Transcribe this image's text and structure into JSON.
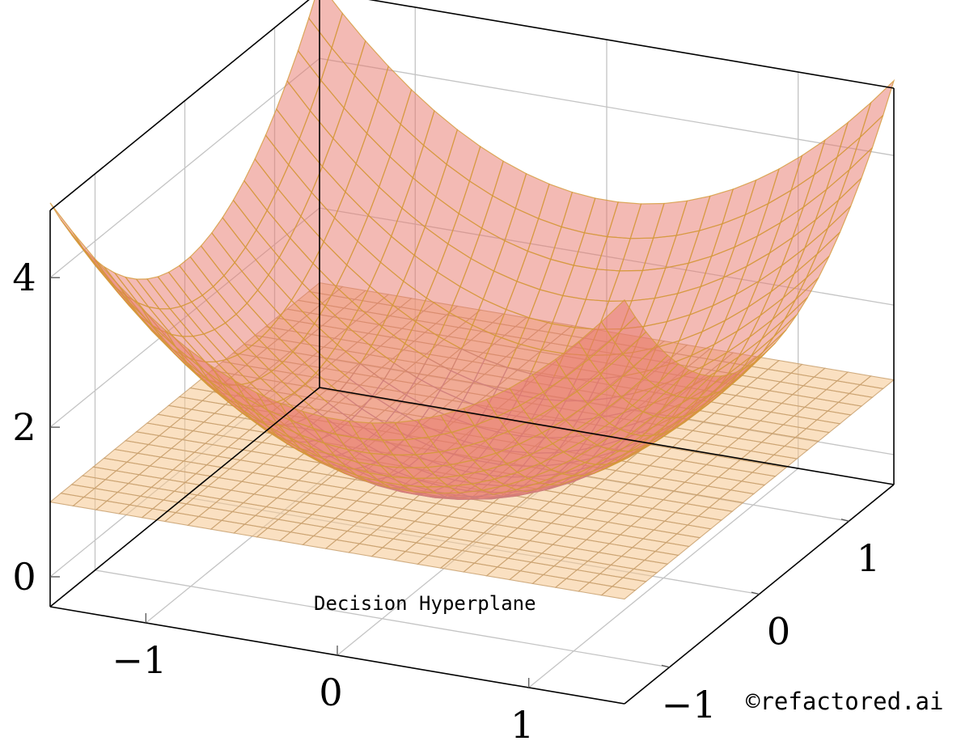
{
  "chart_data": {
    "type": "surface3d",
    "title": "",
    "xlabel": "",
    "ylabel": "",
    "zlabel": "",
    "xlim": [
      -1.5,
      1.5
    ],
    "ylim": [
      -1.5,
      1.5
    ],
    "zlim": [
      -0.4,
      4.9
    ],
    "grid": true,
    "x_ticks": [
      {
        "value": -1,
        "label": "−1"
      },
      {
        "value": 0,
        "label": "0"
      },
      {
        "value": 1,
        "label": "1"
      }
    ],
    "y_ticks": [
      {
        "value": -1,
        "label": "−1"
      },
      {
        "value": 0,
        "label": "0"
      },
      {
        "value": 1,
        "label": "1"
      }
    ],
    "z_ticks": [
      {
        "value": 0,
        "label": "0"
      },
      {
        "value": 2,
        "label": "2"
      },
      {
        "value": 4,
        "label": "4"
      }
    ],
    "surfaces": [
      {
        "type": "paraboloid",
        "expression": "z = x^2 + y^2 + 0.5",
        "color": "#e8756a",
        "grid_color": "#d49a3a",
        "samples": 25
      },
      {
        "type": "plane",
        "z": 1,
        "color": "#f6c68e",
        "grid_color": "#c9a170",
        "samples": 25
      }
    ],
    "annotations": [
      {
        "text": "Decision Hyperplane"
      }
    ]
  },
  "credit": "©refactored.ai"
}
